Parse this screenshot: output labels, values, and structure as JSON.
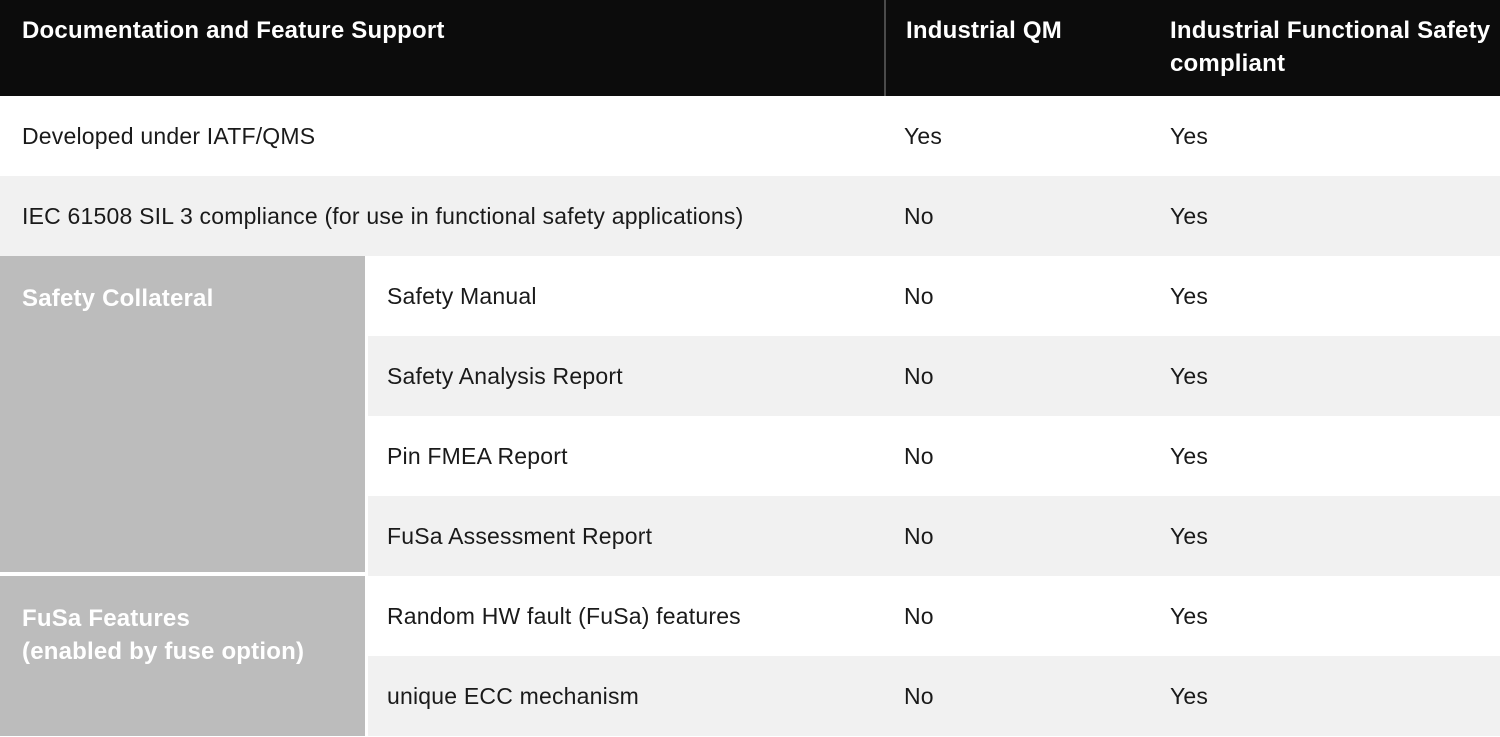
{
  "header": {
    "col1": "Documentation and Feature Support",
    "col2": "Industrial QM",
    "col3": "Industrial Functional Safety compliant"
  },
  "rows": [
    {
      "label": "Developed under IATF/QMS",
      "qm": "Yes",
      "fusa": "Yes"
    },
    {
      "label": "IEC 61508 SIL 3 compliance (for use in functional safety applications)",
      "qm": "No",
      "fusa": "Yes"
    }
  ],
  "groups": [
    {
      "title": "Safety Collateral",
      "rows": [
        {
          "label": "Safety Manual",
          "qm": "No",
          "fusa": "Yes"
        },
        {
          "label": "Safety Analysis Report",
          "qm": "No",
          "fusa": "Yes"
        },
        {
          "label": "Pin FMEA Report",
          "qm": "No",
          "fusa": "Yes"
        },
        {
          "label": "FuSa Assessment Report",
          "qm": "No",
          "fusa": "Yes"
        }
      ]
    },
    {
      "title_lines": [
        "FuSa Features",
        "(enabled by fuse option)"
      ],
      "rows": [
        {
          "label": "Random HW fault (FuSa) features",
          "qm": "No",
          "fusa": "Yes"
        },
        {
          "label": "unique ECC mechanism",
          "qm": "No",
          "fusa": "Yes"
        }
      ]
    }
  ],
  "colors": {
    "header_bg": "#0c0c0c",
    "stripe": "#f1f1f1",
    "sidebar_bg": "#bcbcbc",
    "header_divider": "#4b4b4b",
    "text": "#1a1a1a",
    "sidebar_text": "#ffffff"
  }
}
